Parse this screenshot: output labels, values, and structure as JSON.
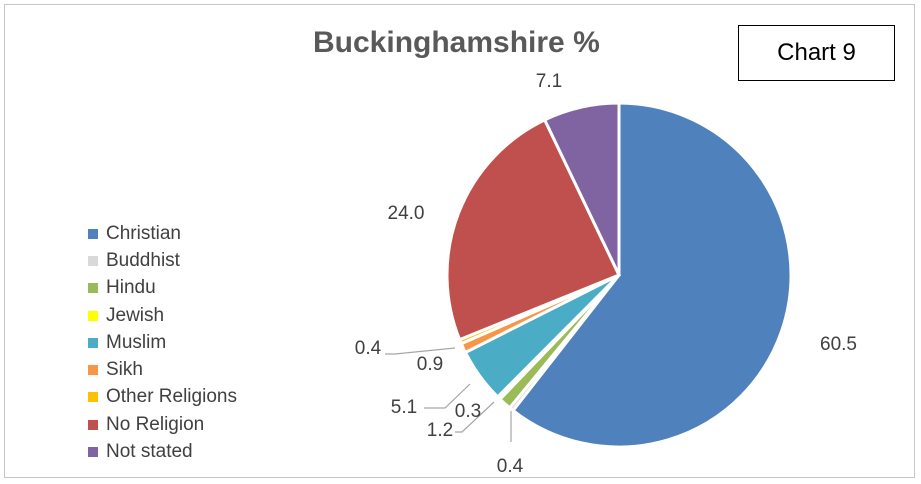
{
  "chart_data": {
    "type": "pie",
    "title": "Buckinghamshire %",
    "categories": [
      "Christian",
      "Buddhist",
      "Hindu",
      "Jewish",
      "Muslim",
      "Sikh",
      "Other Religions",
      "No Religion",
      "Not stated"
    ],
    "values": [
      60.5,
      0.4,
      1.2,
      0.3,
      5.1,
      0.9,
      0.4,
      24.0,
      7.1
    ],
    "labels": [
      "60.5",
      "0.4",
      "1.2",
      "0.3",
      "5.1",
      "0.9",
      "0.4",
      "24.0",
      "7.1"
    ],
    "colors": [
      "#4f81bd",
      "#d9d9d9",
      "#9bbb59",
      "#ffff00",
      "#4bacc6",
      "#f79646",
      "#ffc000",
      "#c0504d",
      "#8064a2"
    ],
    "legend_position": "left"
  },
  "annotation": {
    "text": "Chart 9"
  }
}
